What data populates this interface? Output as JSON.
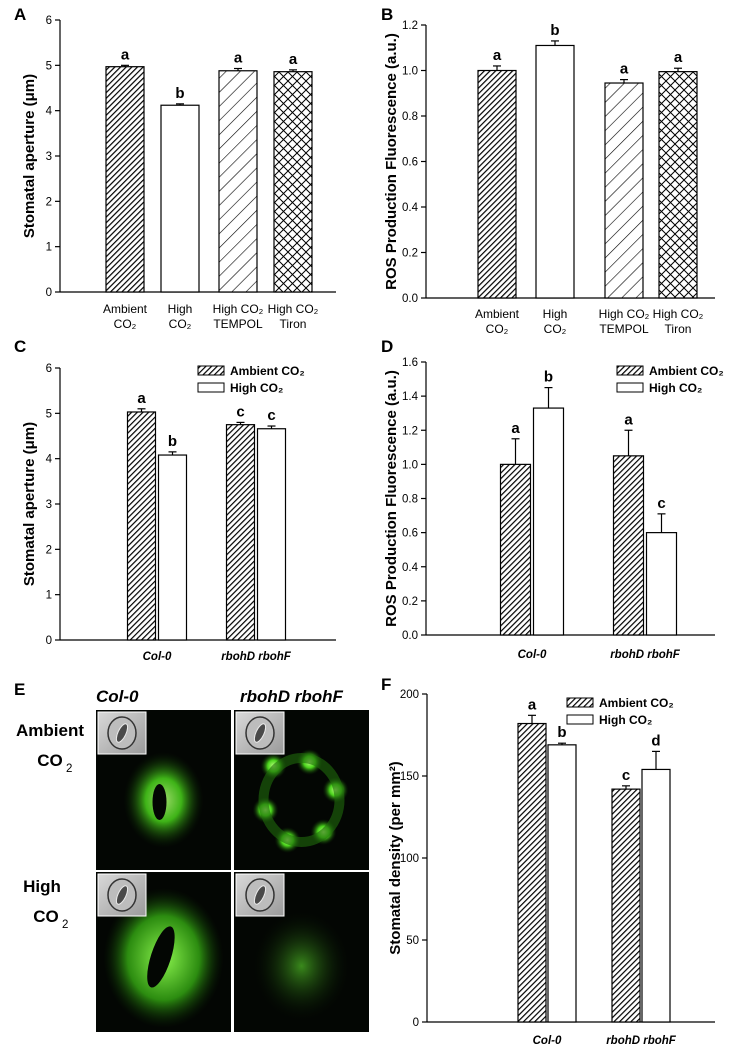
{
  "panels": {
    "E": {
      "letter": "E",
      "columns": [
        "Col-0",
        "rbohD rbohF"
      ],
      "rows": [
        {
          "line1": "Ambient",
          "line2": "CO",
          "sub": "2"
        },
        {
          "line1": "High",
          "line2": "CO",
          "sub": "2"
        }
      ]
    }
  },
  "chart_data": [
    {
      "id": "A",
      "letter": "A",
      "type": "bar",
      "ylabel": "Stomatal aperture (μm)",
      "ylim": [
        0,
        6
      ],
      "yticks": [
        0,
        1,
        2,
        3,
        4,
        5,
        6
      ],
      "tick_decimals": 0,
      "categories": [
        {
          "lines": [
            "Ambient",
            "CO₂"
          ]
        },
        {
          "lines": [
            "High",
            "CO₂"
          ]
        },
        {
          "lines": [
            "High CO₂",
            "TEMPOL"
          ]
        },
        {
          "lines": [
            "High CO₂",
            "Tiron"
          ]
        }
      ],
      "bars": [
        {
          "value": 4.97,
          "err": 0.03,
          "letter": "a",
          "pattern": "diag-dense"
        },
        {
          "value": 4.12,
          "err": 0.03,
          "letter": "b",
          "pattern": "open"
        },
        {
          "value": 4.88,
          "err": 0.05,
          "letter": "a",
          "pattern": "diag-wide"
        },
        {
          "value": 4.86,
          "err": 0.04,
          "letter": "a",
          "pattern": "cross"
        }
      ]
    },
    {
      "id": "B",
      "letter": "B",
      "type": "bar",
      "ylabel": "ROS Production Fluorescence (a.u.)",
      "ylim": [
        0,
        1.2
      ],
      "yticks": [
        0.0,
        0.2,
        0.4,
        0.6,
        0.8,
        1.0,
        1.2
      ],
      "tick_decimals": 1,
      "categories": [
        {
          "lines": [
            "Ambient",
            "CO₂"
          ]
        },
        {
          "lines": [
            "High",
            "CO₂"
          ]
        },
        {
          "lines": [
            "High CO₂",
            "TEMPOL"
          ]
        },
        {
          "lines": [
            "High CO₂",
            "Tiron"
          ]
        }
      ],
      "bars": [
        {
          "value": 1.0,
          "err": 0.02,
          "letter": "a",
          "pattern": "diag-dense"
        },
        {
          "value": 1.11,
          "err": 0.02,
          "letter": "b",
          "pattern": "open"
        },
        {
          "value": 0.945,
          "err": 0.015,
          "letter": "a",
          "pattern": "diag-wide"
        },
        {
          "value": 0.995,
          "err": 0.015,
          "letter": "a",
          "pattern": "cross"
        }
      ]
    },
    {
      "id": "C",
      "letter": "C",
      "type": "bar",
      "ylabel": "Stomatal aperture (μm)",
      "ylim": [
        0,
        6
      ],
      "yticks": [
        0,
        1,
        2,
        3,
        4,
        5,
        6
      ],
      "tick_decimals": 0,
      "legend": [
        "Ambient CO₂",
        "High CO₂"
      ],
      "groups": [
        "Col-0",
        "rbohD rbohF"
      ],
      "series": [
        {
          "values": [
            5.03,
            4.75
          ],
          "err": [
            0.07,
            0.05
          ],
          "letters": [
            "a",
            "c"
          ],
          "pattern": "diag-dense"
        },
        {
          "values": [
            4.08,
            4.66
          ],
          "err": [
            0.07,
            0.06
          ],
          "letters": [
            "b",
            "c"
          ],
          "pattern": "open"
        }
      ]
    },
    {
      "id": "D",
      "letter": "D",
      "type": "bar",
      "ylabel": "ROS Production Fluorescence (a.u.)",
      "ylim": [
        0,
        1.6
      ],
      "yticks": [
        0.0,
        0.2,
        0.4,
        0.6,
        0.8,
        1.0,
        1.2,
        1.4,
        1.6
      ],
      "tick_decimals": 1,
      "legend": [
        "Ambient CO₂",
        "High CO₂"
      ],
      "groups": [
        "Col-0",
        "rbohD rbohF"
      ],
      "series": [
        {
          "values": [
            1.0,
            1.05
          ],
          "err": [
            0.15,
            0.15
          ],
          "letters": [
            "a",
            "a"
          ],
          "pattern": "diag-dense"
        },
        {
          "values": [
            1.33,
            0.6
          ],
          "err": [
            0.12,
            0.11
          ],
          "letters": [
            "b",
            "c"
          ],
          "pattern": "open"
        }
      ]
    },
    {
      "id": "F",
      "letter": "F",
      "type": "bar",
      "ylabel": "Stomatal density (per mm²)",
      "ylim": [
        0,
        200
      ],
      "yticks": [
        0,
        50,
        100,
        150,
        200
      ],
      "tick_decimals": 0,
      "legend": [
        "Ambient CO₂",
        "High CO₂"
      ],
      "groups": [
        "Col-0",
        "rbohD rbohF"
      ],
      "series": [
        {
          "values": [
            182,
            142
          ],
          "err": [
            5,
            2
          ],
          "letters": [
            "a",
            "c"
          ],
          "pattern": "diag-dense"
        },
        {
          "values": [
            169,
            154
          ],
          "err": [
            1,
            11
          ],
          "letters": [
            "b",
            "d"
          ],
          "pattern": "open"
        }
      ]
    }
  ]
}
